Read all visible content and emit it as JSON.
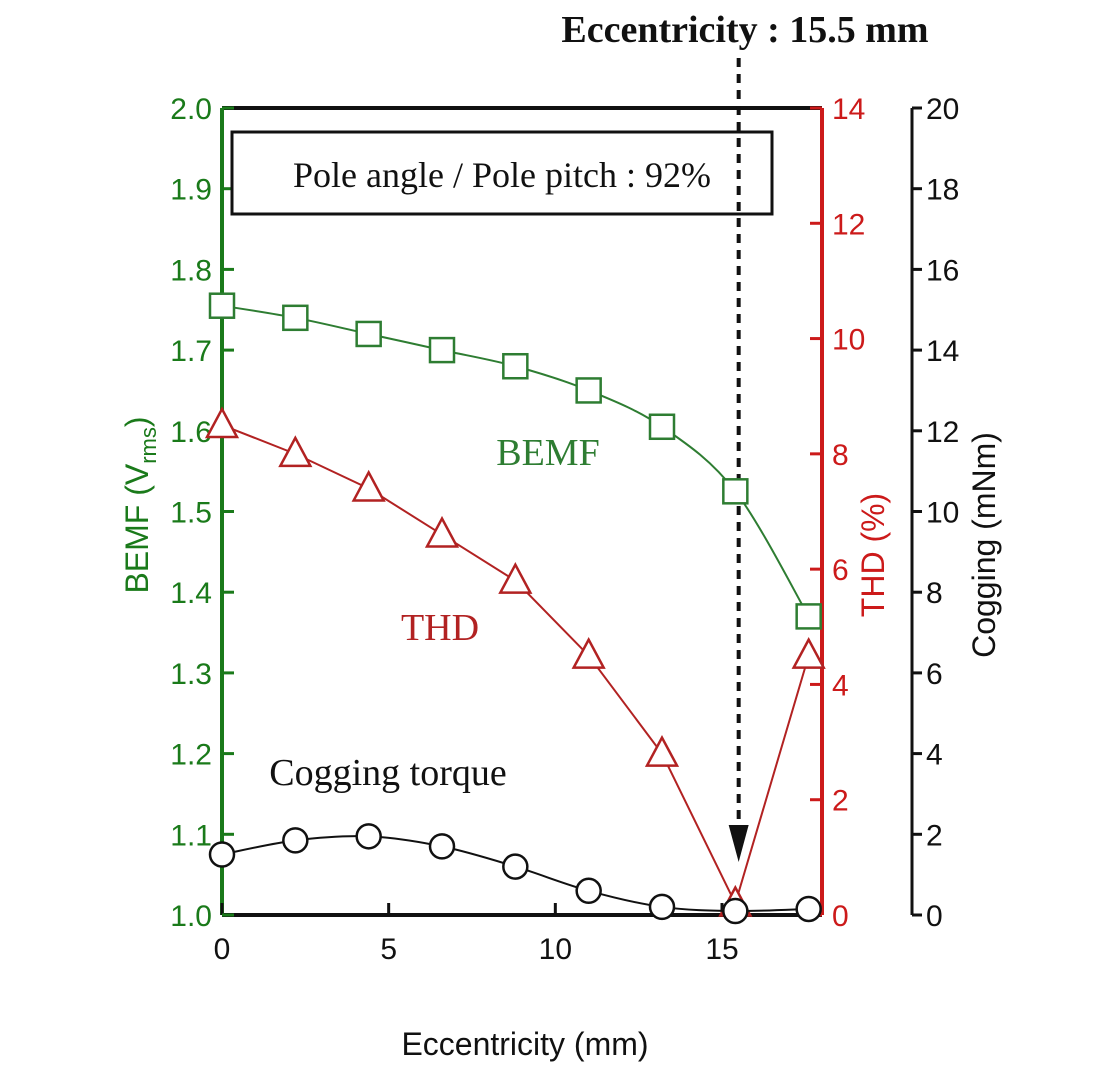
{
  "chart_data": {
    "type": "line",
    "note_box": "Pole angle / Pole pitch : 92%",
    "annotation": {
      "text": "Eccentricity : 15.5 mm",
      "x": 15.5
    },
    "xlabel": "Eccentricity (mm)",
    "xlim": [
      0,
      18
    ],
    "xticks": [
      0,
      5,
      10,
      15
    ],
    "axes": {
      "left": {
        "label_main": "BEMF (V",
        "label_sub": "rms",
        "label_close": ")",
        "lim": [
          1.0,
          2.0
        ],
        "ticks": [
          "1.0",
          "1.1",
          "1.2",
          "1.3",
          "1.4",
          "1.5",
          "1.6",
          "1.7",
          "1.8",
          "1.9",
          "2.0"
        ],
        "color": "#1a7a1a"
      },
      "right1": {
        "label": "THD (%)",
        "lim": [
          0,
          14
        ],
        "ticks": [
          "0",
          "2",
          "4",
          "6",
          "8",
          "10",
          "12",
          "14"
        ],
        "color": "#cc1a1a"
      },
      "right2": {
        "label": "Cogging (mNm)",
        "lim": [
          0,
          20
        ],
        "ticks": [
          "0",
          "2",
          "4",
          "6",
          "8",
          "10",
          "12",
          "14",
          "16",
          "18",
          "20"
        ],
        "color": "#111111"
      }
    },
    "series": [
      {
        "name": "BEMF",
        "axis": "left",
        "marker": "square",
        "color": "#2e7d32",
        "x": [
          0,
          2.2,
          4.4,
          6.6,
          8.8,
          11.0,
          13.2,
          15.4,
          17.6
        ],
        "y": [
          1.755,
          1.74,
          1.72,
          1.7,
          1.68,
          1.65,
          1.605,
          1.525,
          1.37
        ]
      },
      {
        "name": "THD",
        "axis": "right1",
        "marker": "triangle",
        "color": "#b22222",
        "x": [
          0,
          2.2,
          4.4,
          6.6,
          8.8,
          11.0,
          13.2,
          15.4,
          17.6
        ],
        "y": [
          8.5,
          8.0,
          7.4,
          6.6,
          5.8,
          4.5,
          2.8,
          0.2,
          4.5
        ]
      },
      {
        "name": "Cogging torque",
        "axis": "right2",
        "marker": "circle",
        "color": "#111111",
        "x": [
          0,
          2.2,
          4.4,
          6.6,
          8.8,
          11.0,
          13.2,
          15.4,
          17.6
        ],
        "y": [
          1.5,
          1.85,
          1.95,
          1.7,
          1.2,
          0.6,
          0.2,
          0.1,
          0.15
        ]
      }
    ]
  }
}
